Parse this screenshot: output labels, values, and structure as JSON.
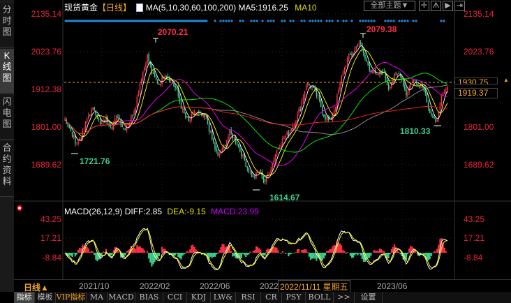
{
  "sidebar": {
    "items": [
      {
        "label": "分时图",
        "active": false
      },
      {
        "label": "K线图",
        "active": true
      },
      {
        "label": "闪电图",
        "active": false
      },
      {
        "label": "合约资料",
        "active": false
      }
    ]
  },
  "header": {
    "instrument": "现货黄金",
    "period": "【日线】",
    "indicator_icon": "ma-chart-icon",
    "ma_params": "MA(5,10,30,60,100,200)",
    "ma5": "MA5:1916.25",
    "ma10": "MA10"
  },
  "toolbar": {
    "theme_select": "全部主题▼",
    "icons": [
      "crosshair-icon",
      "zoom-range-icon",
      "play-icon",
      "goto-end-icon"
    ]
  },
  "price_axis": {
    "labels": [
      "2135.14",
      "2023.76",
      "1912.38",
      "1801.00",
      "1689.62"
    ]
  },
  "price_boxes": {
    "cursor": "1930.75",
    "last": "1919.37"
  },
  "annotations": {
    "high1": "2070.21",
    "high2": "2079.38",
    "low1": "1721.76",
    "low2": "1614.67",
    "low3": "1810.33"
  },
  "macd": {
    "title": "MACD(26,12,9)",
    "diff": "DIFF:2.85",
    "dea": "DEA:-9.15",
    "macd": "MACD:23.99",
    "axis": [
      "43.25",
      "17.21",
      "-8.84"
    ]
  },
  "time_axis": {
    "period": "日线▲",
    "labels": [
      "2021/10",
      "2022/02",
      "2022/06",
      "2022",
      "2023/06"
    ],
    "cursor_date": "2022/11/11 星期五"
  },
  "tabs": [
    "指标",
    "模板",
    "VIP指标",
    "MA",
    "MACD",
    "BIAS",
    "CCI",
    "KDJ",
    "LW&",
    "RSI",
    "CR",
    "PSY",
    "BOLL",
    ">>",
    "设置"
  ],
  "colors": {
    "up": "#ff3048",
    "down": "#3ccf8e",
    "ma5": "#ffffff",
    "ma10": "#ffff00",
    "ma30": "#ff00ff",
    "ma60": "#00ff00",
    "ma100": "#999999",
    "ma200": "#ff2020",
    "axis": "#e8243c",
    "accent": "#f5a623"
  },
  "chart_data": {
    "type": "candlestick",
    "ylim": [
      1610,
      2140
    ],
    "close_keypoints": [
      1826,
      1784,
      1754,
      1784,
      1836,
      1857,
      1805,
      1826,
      1805,
      1836,
      1795,
      1815,
      1867,
      1950,
      2011,
      1950,
      1929,
      1960,
      1939,
      1908,
      1846,
      1815,
      1846,
      1836,
      1826,
      1764,
      1712,
      1743,
      1784,
      1764,
      1723,
      1681,
      1650,
      1671,
      1640,
      1681,
      1733,
      1764,
      1784,
      1815,
      1857,
      1929,
      1919,
      1888,
      1836,
      1815,
      1867,
      1950,
      2001,
      2022,
      2053,
      2001,
      1970,
      1950,
      1970,
      1919,
      1950,
      1960,
      1898,
      1939,
      1929,
      1919,
      1846,
      1809,
      1888,
      1919
    ],
    "macd_ylim": [
      -50,
      60
    ]
  }
}
